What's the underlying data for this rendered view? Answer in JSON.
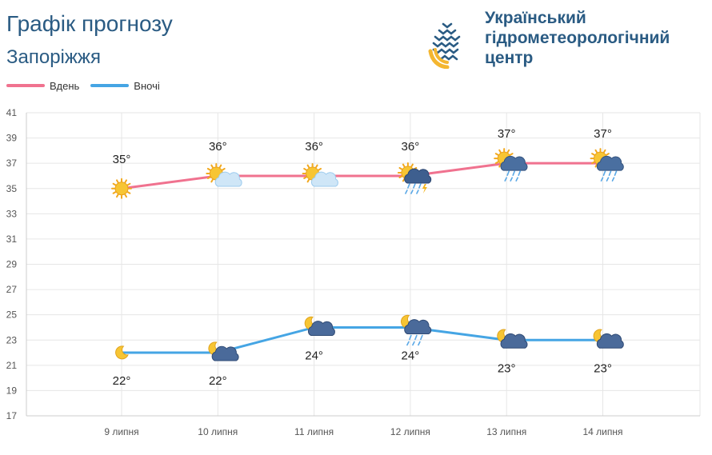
{
  "header": {
    "title": "Графік прогнозу",
    "city": "Запоріжжя",
    "org_name_lines": [
      "Український",
      "гідрометеорологічний",
      "центр"
    ]
  },
  "legend": [
    {
      "label": "Вдень",
      "color": "#f0728f"
    },
    {
      "label": "Вночі",
      "color": "#45a5e4"
    }
  ],
  "chart_data": {
    "type": "line",
    "categories": [
      "9 липня",
      "10 липня",
      "11 липня",
      "12 липня",
      "13 липня",
      "14 липня"
    ],
    "series": [
      {
        "name": "Вдень",
        "color": "#f0728f",
        "values": [
          35,
          36,
          36,
          36,
          37,
          37
        ],
        "labels": [
          "35°",
          "36°",
          "36°",
          "36°",
          "37°",
          "37°"
        ],
        "icons": [
          "sun",
          "sun-cloud",
          "sun-cloud",
          "sun-thunderstorm-rain",
          "sun-rain",
          "sun-rain"
        ]
      },
      {
        "name": "Вночі",
        "color": "#45a5e4",
        "values": [
          22,
          22,
          24,
          24,
          23,
          23
        ],
        "labels": [
          "22°",
          "22°",
          "24°",
          "24°",
          "23°",
          "23°"
        ],
        "icons": [
          "moon",
          "moon-cloud",
          "moon-cloud",
          "moon-cloud-rain",
          "moon-cloud",
          "moon-cloud"
        ]
      }
    ],
    "ylim": [
      17,
      41
    ],
    "yticks": [
      17,
      19,
      21,
      23,
      25,
      27,
      29,
      31,
      33,
      35,
      37,
      39,
      41
    ],
    "grid": true,
    "legend_position": "top-left"
  }
}
